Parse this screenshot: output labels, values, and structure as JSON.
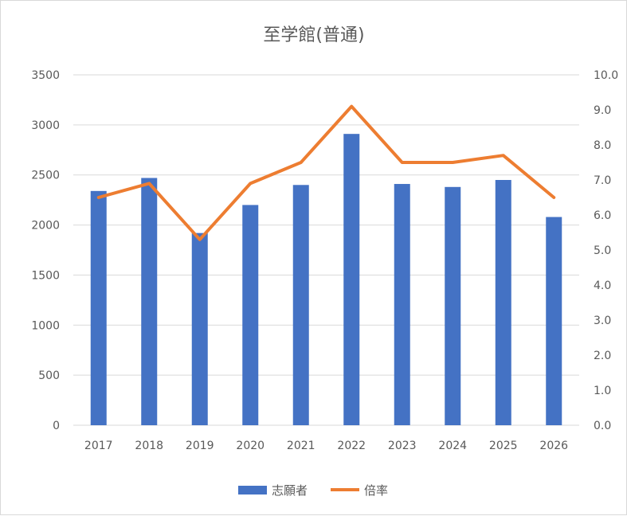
{
  "chart_data": {
    "type": "bar",
    "title": "至学館(普通)",
    "categories": [
      "2017",
      "2018",
      "2019",
      "2020",
      "2021",
      "2022",
      "2023",
      "2024",
      "2025",
      "2026"
    ],
    "series": [
      {
        "name": "志願者",
        "type": "bar",
        "axis": "left",
        "color": "#4472c4",
        "values": [
          2340,
          2470,
          1920,
          2200,
          2400,
          2910,
          2410,
          2380,
          2450,
          2080
        ]
      },
      {
        "name": "倍率",
        "type": "line",
        "axis": "right",
        "color": "#ed7d31",
        "values": [
          6.5,
          6.9,
          5.3,
          6.9,
          7.5,
          9.1,
          7.5,
          7.5,
          7.7,
          6.5
        ]
      }
    ],
    "y_left": {
      "min": 0,
      "max": 3500,
      "ticks": [
        "0",
        "500",
        "1000",
        "1500",
        "2000",
        "2500",
        "3000",
        "3500"
      ]
    },
    "y_right": {
      "min": 0,
      "max": 10,
      "ticks": [
        "0.0",
        "1.0",
        "2.0",
        "3.0",
        "4.0",
        "5.0",
        "6.0",
        "7.0",
        "8.0",
        "9.0",
        "10.0"
      ]
    },
    "grid": true,
    "legend_position": "bottom"
  }
}
